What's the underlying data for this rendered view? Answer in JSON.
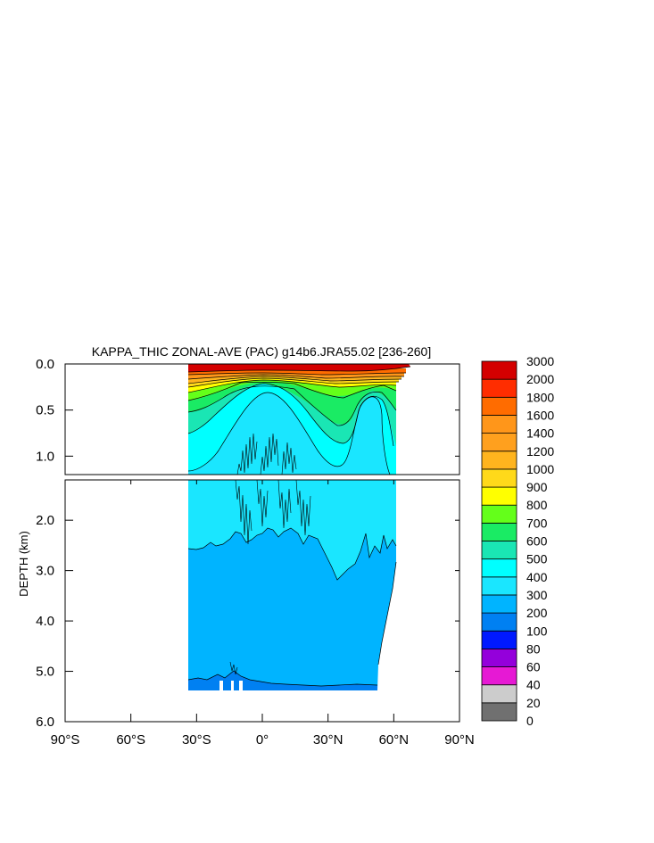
{
  "chart_data": {
    "type": "heatmap",
    "title": "KAPPA_THIC ZONAL-AVE (PAC) g14b6.JRA55.02 [236-260]",
    "ylabel": "DEPTH (km)",
    "xlabel": "",
    "xlim": [
      -90,
      90
    ],
    "x_ticks": [
      {
        "v": -90,
        "label": "90°S"
      },
      {
        "v": -60,
        "label": "60°S"
      },
      {
        "v": -30,
        "label": "30°S"
      },
      {
        "v": 0,
        "label": "0°"
      },
      {
        "v": 30,
        "label": "30°N"
      },
      {
        "v": 60,
        "label": "60°N"
      },
      {
        "v": 90,
        "label": "90°N"
      }
    ],
    "upper_panel": {
      "ylim": [
        0,
        1.2
      ],
      "y_ticks": [
        {
          "v": 0.0,
          "label": "0.0"
        },
        {
          "v": 0.5,
          "label": "0.5"
        },
        {
          "v": 1.0,
          "label": "1.0"
        }
      ]
    },
    "lower_panel": {
      "ylim": [
        1.2,
        6.0
      ],
      "y_ticks": [
        {
          "v": 2.0,
          "label": "2.0"
        },
        {
          "v": 3.0,
          "label": "3.0"
        },
        {
          "v": 4.0,
          "label": "4.0"
        },
        {
          "v": 5.0,
          "label": "5.0"
        },
        {
          "v": 6.0,
          "label": "6.0"
        }
      ]
    },
    "colorbar": {
      "levels": [
        "0",
        "20",
        "40",
        "60",
        "80",
        "100",
        "200",
        "300",
        "400",
        "500",
        "600",
        "700",
        "800",
        "900",
        "1000",
        "1200",
        "1400",
        "1600",
        "1800",
        "2000",
        "3000"
      ],
      "colors": [
        "#707070",
        "#cccccc",
        "#e619d4",
        "#9400db",
        "#0019ff",
        "#0080f2",
        "#00b4ff",
        "#1ae6ff",
        "#00ffff",
        "#1ae6b4",
        "#1aeb64",
        "#64ff1a",
        "#ffff00",
        "#ffd91a",
        "#ffb41e",
        "#ffa01e",
        "#ff961a",
        "#ff6c00",
        "#ff2d00",
        "#d40000"
      ]
    },
    "field_summary": {
      "lat_range": [
        -34,
        64
      ],
      "bottom_depth_km": 5.35,
      "regions": [
        {
          "level": "2000-3000",
          "depth_km": [
            0.0,
            0.05
          ]
        },
        {
          "level": "1000-1800",
          "depth_km": [
            0.05,
            0.15
          ]
        },
        {
          "level": "600-900",
          "depth_km": [
            0.15,
            0.45
          ]
        },
        {
          "level": "400-600",
          "depth_km": [
            0.4,
            1.0
          ]
        },
        {
          "level": "300-400",
          "depth_km": [
            0.3,
            3.0
          ]
        },
        {
          "level": "200-300",
          "depth_km": [
            2.4,
            5.2
          ]
        },
        {
          "level": "100-200",
          "depth_km": [
            5.1,
            5.35
          ]
        }
      ]
    }
  }
}
